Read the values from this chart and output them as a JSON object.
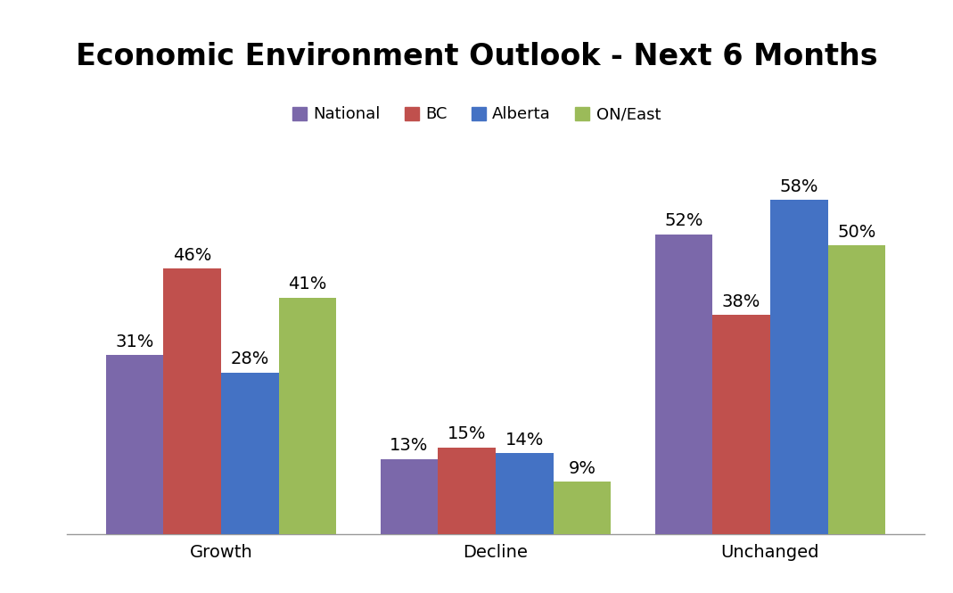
{
  "title": "Economic Environment Outlook - Next 6 Months",
  "categories": [
    "Growth",
    "Decline",
    "Unchanged"
  ],
  "series": {
    "National": [
      31,
      13,
      52
    ],
    "BC": [
      46,
      15,
      38
    ],
    "Alberta": [
      28,
      14,
      58
    ],
    "ON/East": [
      41,
      9,
      50
    ]
  },
  "colors": {
    "National": "#7B68AA",
    "BC": "#C0504D",
    "Alberta": "#4472C4",
    "ON/East": "#9BBB59"
  },
  "ylim": [
    0,
    70
  ],
  "bar_width": 0.21,
  "legend_order": [
    "National",
    "BC",
    "Alberta",
    "ON/East"
  ],
  "title_fontsize": 24,
  "label_fontsize": 14,
  "tick_fontsize": 14,
  "legend_fontsize": 13,
  "background_color": "#FFFFFF"
}
